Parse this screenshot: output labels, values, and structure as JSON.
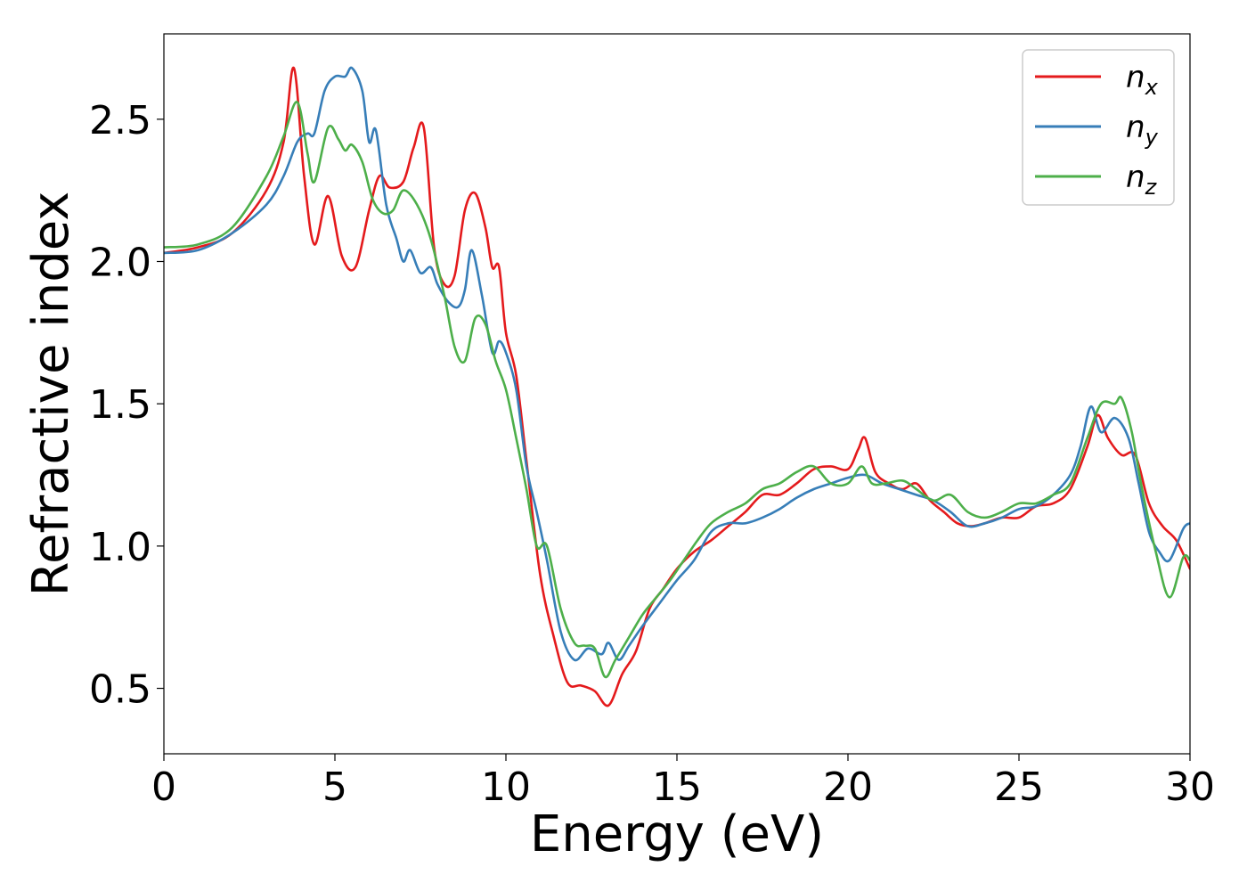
{
  "chart_data": {
    "type": "line",
    "xlabel": "Energy (eV)",
    "ylabel": "Refractive index",
    "xlim": [
      0,
      30
    ],
    "ylim": [
      0.27,
      2.8
    ],
    "xticks": [
      0,
      5,
      10,
      15,
      20,
      25,
      30
    ],
    "xtick_labels": [
      "0",
      "5",
      "10",
      "15",
      "20",
      "25",
      "30"
    ],
    "yticks": [
      0.5,
      1.0,
      1.5,
      2.0,
      2.5
    ],
    "ytick_labels": [
      "0.5",
      "1.0",
      "1.5",
      "2.0",
      "2.5"
    ],
    "grid": false,
    "legend_position": "top-right",
    "series": [
      {
        "name": "n_x",
        "label_base": "n",
        "label_sub": "x",
        "color": "#e41a1c",
        "points": [
          [
            0,
            2.03
          ],
          [
            1,
            2.05
          ],
          [
            2,
            2.1
          ],
          [
            3,
            2.25
          ],
          [
            3.5,
            2.42
          ],
          [
            3.8,
            2.68
          ],
          [
            4.1,
            2.3
          ],
          [
            4.4,
            2.06
          ],
          [
            4.8,
            2.23
          ],
          [
            5.2,
            2.02
          ],
          [
            5.6,
            1.98
          ],
          [
            6.0,
            2.18
          ],
          [
            6.3,
            2.3
          ],
          [
            6.6,
            2.26
          ],
          [
            7.0,
            2.28
          ],
          [
            7.3,
            2.4
          ],
          [
            7.6,
            2.47
          ],
          [
            7.9,
            2.05
          ],
          [
            8.2,
            1.92
          ],
          [
            8.5,
            1.95
          ],
          [
            8.8,
            2.18
          ],
          [
            9.1,
            2.24
          ],
          [
            9.4,
            2.12
          ],
          [
            9.6,
            1.98
          ],
          [
            9.8,
            1.98
          ],
          [
            10.0,
            1.75
          ],
          [
            10.3,
            1.6
          ],
          [
            10.6,
            1.3
          ],
          [
            11.0,
            0.9
          ],
          [
            11.4,
            0.68
          ],
          [
            11.8,
            0.52
          ],
          [
            12.2,
            0.51
          ],
          [
            12.6,
            0.49
          ],
          [
            13.0,
            0.44
          ],
          [
            13.4,
            0.55
          ],
          [
            13.8,
            0.63
          ],
          [
            14.2,
            0.78
          ],
          [
            14.6,
            0.85
          ],
          [
            15.0,
            0.92
          ],
          [
            15.5,
            0.98
          ],
          [
            16.0,
            1.02
          ],
          [
            16.5,
            1.07
          ],
          [
            17.0,
            1.12
          ],
          [
            17.5,
            1.18
          ],
          [
            18.0,
            1.18
          ],
          [
            18.5,
            1.22
          ],
          [
            19.0,
            1.27
          ],
          [
            19.5,
            1.28
          ],
          [
            20.0,
            1.27
          ],
          [
            20.3,
            1.34
          ],
          [
            20.5,
            1.38
          ],
          [
            20.8,
            1.26
          ],
          [
            21.2,
            1.22
          ],
          [
            21.6,
            1.2
          ],
          [
            22.0,
            1.22
          ],
          [
            22.4,
            1.16
          ],
          [
            22.8,
            1.12
          ],
          [
            23.2,
            1.08
          ],
          [
            23.6,
            1.07
          ],
          [
            24.0,
            1.08
          ],
          [
            24.5,
            1.1
          ],
          [
            25.0,
            1.1
          ],
          [
            25.5,
            1.14
          ],
          [
            26.0,
            1.15
          ],
          [
            26.5,
            1.2
          ],
          [
            27.0,
            1.35
          ],
          [
            27.3,
            1.46
          ],
          [
            27.6,
            1.38
          ],
          [
            28.0,
            1.32
          ],
          [
            28.4,
            1.32
          ],
          [
            28.8,
            1.15
          ],
          [
            29.2,
            1.07
          ],
          [
            29.6,
            1.02
          ],
          [
            30.0,
            0.92
          ]
        ]
      },
      {
        "name": "n_y",
        "label_base": "n",
        "label_sub": "y",
        "color": "#377eb8",
        "points": [
          [
            0,
            2.03
          ],
          [
            1,
            2.04
          ],
          [
            2,
            2.1
          ],
          [
            3,
            2.2
          ],
          [
            3.5,
            2.3
          ],
          [
            3.9,
            2.42
          ],
          [
            4.2,
            2.45
          ],
          [
            4.4,
            2.45
          ],
          [
            4.7,
            2.6
          ],
          [
            5.0,
            2.65
          ],
          [
            5.3,
            2.65
          ],
          [
            5.5,
            2.68
          ],
          [
            5.8,
            2.6
          ],
          [
            6.0,
            2.42
          ],
          [
            6.2,
            2.46
          ],
          [
            6.5,
            2.2
          ],
          [
            6.8,
            2.08
          ],
          [
            7.0,
            2.0
          ],
          [
            7.2,
            2.04
          ],
          [
            7.5,
            1.96
          ],
          [
            7.8,
            1.98
          ],
          [
            8.0,
            1.92
          ],
          [
            8.3,
            1.86
          ],
          [
            8.6,
            1.84
          ],
          [
            8.8,
            1.9
          ],
          [
            9.0,
            2.04
          ],
          [
            9.3,
            1.88
          ],
          [
            9.6,
            1.68
          ],
          [
            9.8,
            1.72
          ],
          [
            10.0,
            1.68
          ],
          [
            10.3,
            1.55
          ],
          [
            10.6,
            1.28
          ],
          [
            10.9,
            1.12
          ],
          [
            11.2,
            0.95
          ],
          [
            11.6,
            0.7
          ],
          [
            12.0,
            0.6
          ],
          [
            12.4,
            0.64
          ],
          [
            12.8,
            0.62
          ],
          [
            13.0,
            0.66
          ],
          [
            13.3,
            0.6
          ],
          [
            13.6,
            0.65
          ],
          [
            14.0,
            0.72
          ],
          [
            14.5,
            0.8
          ],
          [
            15.0,
            0.88
          ],
          [
            15.5,
            0.95
          ],
          [
            16.0,
            1.05
          ],
          [
            16.5,
            1.08
          ],
          [
            17.0,
            1.08
          ],
          [
            17.5,
            1.1
          ],
          [
            18.0,
            1.13
          ],
          [
            18.5,
            1.17
          ],
          [
            19.0,
            1.2
          ],
          [
            19.5,
            1.22
          ],
          [
            20.0,
            1.24
          ],
          [
            20.5,
            1.25
          ],
          [
            21.0,
            1.22
          ],
          [
            21.5,
            1.2
          ],
          [
            22.0,
            1.18
          ],
          [
            22.5,
            1.16
          ],
          [
            23.0,
            1.12
          ],
          [
            23.5,
            1.07
          ],
          [
            24.0,
            1.08
          ],
          [
            24.5,
            1.1
          ],
          [
            25.0,
            1.13
          ],
          [
            25.5,
            1.14
          ],
          [
            26.0,
            1.18
          ],
          [
            26.5,
            1.25
          ],
          [
            26.8,
            1.35
          ],
          [
            27.1,
            1.49
          ],
          [
            27.4,
            1.4
          ],
          [
            27.8,
            1.45
          ],
          [
            28.2,
            1.38
          ],
          [
            28.5,
            1.22
          ],
          [
            28.8,
            1.05
          ],
          [
            29.1,
            0.98
          ],
          [
            29.4,
            0.95
          ],
          [
            29.8,
            1.06
          ],
          [
            30.0,
            1.08
          ]
        ]
      },
      {
        "name": "n_z",
        "label_base": "n",
        "label_sub": "z",
        "color": "#4daf4a",
        "points": [
          [
            0,
            2.05
          ],
          [
            1,
            2.06
          ],
          [
            2,
            2.12
          ],
          [
            3,
            2.3
          ],
          [
            3.5,
            2.44
          ],
          [
            3.9,
            2.56
          ],
          [
            4.2,
            2.38
          ],
          [
            4.4,
            2.28
          ],
          [
            4.8,
            2.47
          ],
          [
            5.1,
            2.43
          ],
          [
            5.3,
            2.39
          ],
          [
            5.5,
            2.41
          ],
          [
            5.8,
            2.35
          ],
          [
            6.1,
            2.22
          ],
          [
            6.4,
            2.17
          ],
          [
            6.7,
            2.18
          ],
          [
            7.0,
            2.25
          ],
          [
            7.4,
            2.2
          ],
          [
            7.8,
            2.08
          ],
          [
            8.2,
            1.88
          ],
          [
            8.5,
            1.7
          ],
          [
            8.8,
            1.65
          ],
          [
            9.1,
            1.8
          ],
          [
            9.4,
            1.78
          ],
          [
            9.7,
            1.65
          ],
          [
            10.0,
            1.55
          ],
          [
            10.3,
            1.38
          ],
          [
            10.6,
            1.2
          ],
          [
            10.9,
            1.0
          ],
          [
            11.2,
            1.0
          ],
          [
            11.6,
            0.78
          ],
          [
            12.0,
            0.66
          ],
          [
            12.3,
            0.65
          ],
          [
            12.6,
            0.64
          ],
          [
            12.9,
            0.54
          ],
          [
            13.2,
            0.6
          ],
          [
            13.6,
            0.68
          ],
          [
            14.0,
            0.76
          ],
          [
            14.4,
            0.82
          ],
          [
            14.8,
            0.88
          ],
          [
            15.2,
            0.95
          ],
          [
            15.6,
            1.02
          ],
          [
            16.0,
            1.08
          ],
          [
            16.5,
            1.12
          ],
          [
            17.0,
            1.15
          ],
          [
            17.5,
            1.2
          ],
          [
            18.0,
            1.22
          ],
          [
            18.5,
            1.26
          ],
          [
            19.0,
            1.28
          ],
          [
            19.5,
            1.22
          ],
          [
            20.0,
            1.22
          ],
          [
            20.4,
            1.28
          ],
          [
            20.7,
            1.22
          ],
          [
            21.1,
            1.22
          ],
          [
            21.6,
            1.23
          ],
          [
            22.0,
            1.2
          ],
          [
            22.5,
            1.16
          ],
          [
            23.0,
            1.18
          ],
          [
            23.5,
            1.12
          ],
          [
            24.0,
            1.1
          ],
          [
            24.5,
            1.12
          ],
          [
            25.0,
            1.15
          ],
          [
            25.5,
            1.15
          ],
          [
            26.0,
            1.18
          ],
          [
            26.5,
            1.22
          ],
          [
            27.0,
            1.38
          ],
          [
            27.4,
            1.5
          ],
          [
            27.8,
            1.5
          ],
          [
            28.0,
            1.52
          ],
          [
            28.3,
            1.4
          ],
          [
            28.6,
            1.2
          ],
          [
            29.0,
            0.98
          ],
          [
            29.4,
            0.82
          ],
          [
            29.8,
            0.96
          ],
          [
            30.0,
            0.95
          ]
        ]
      }
    ]
  }
}
